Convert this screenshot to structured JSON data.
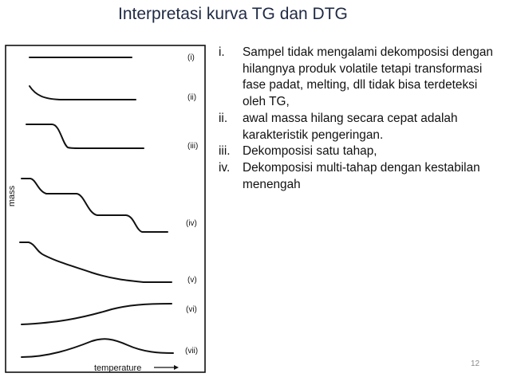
{
  "title": "Interpretasi kurva TG dan DTG",
  "figure": {
    "y_axis_label": "mass",
    "x_axis_label": "temperature",
    "curve_labels": [
      "(i)",
      "(ii)",
      "(iii)",
      "(iv)",
      "(v)",
      "(vi)",
      "(vii)"
    ]
  },
  "notes": [
    {
      "marker": "i.",
      "text": "Sampel tidak mengalami dekomposisi dengan hilangnya produk volatile tetapi transformasi fase padat, melting, dll tidak bisa terdeteksi oleh TG,"
    },
    {
      "marker": "ii.",
      "text": "awal massa hilang secara cepat adalah karakteristik pengeringan."
    },
    {
      "marker": "iii.",
      "text": "Dekomposisi satu tahap,"
    },
    {
      "marker": "iv.",
      "text": "Dekomposisi multi-tahap dengan kestabilan menengah"
    }
  ],
  "page_number": "12"
}
